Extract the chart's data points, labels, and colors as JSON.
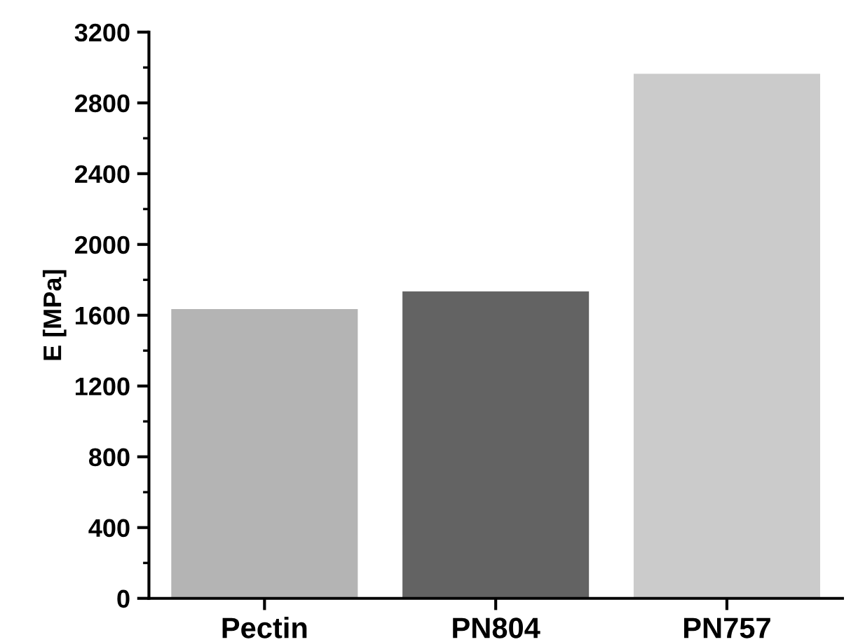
{
  "chart_data": {
    "type": "bar",
    "ylabel": "E [MPa]",
    "categories": [
      "Pectin",
      "PN804",
      "PN757"
    ],
    "values": [
      1630,
      1730,
      2960
    ],
    "colors": [
      "#b4b4b4",
      "#636363",
      "#cbcbcb"
    ],
    "ylim": [
      0,
      3200
    ],
    "yticks": [
      0,
      400,
      800,
      1200,
      1600,
      2000,
      2400,
      2800,
      3200
    ],
    "grid": false,
    "legend": false
  }
}
